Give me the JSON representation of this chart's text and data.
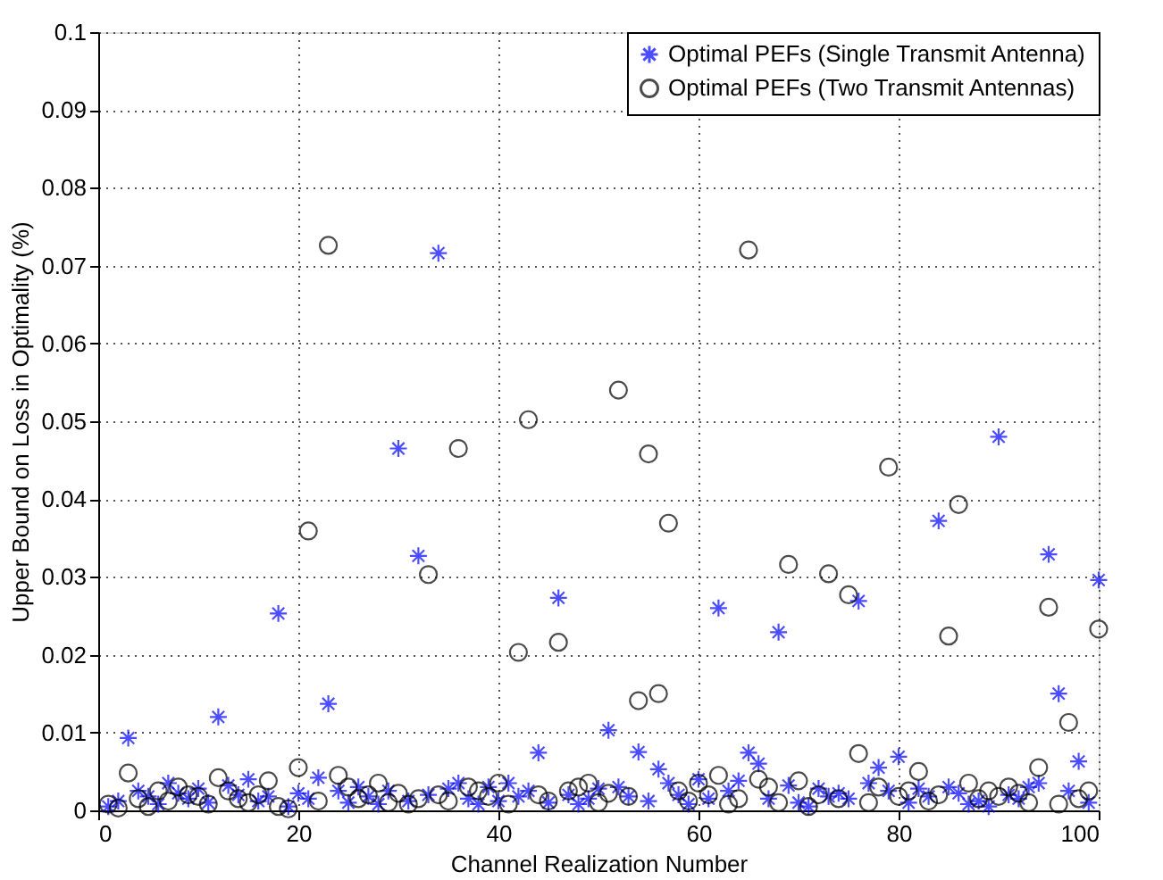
{
  "chart_data": {
    "type": "scatter",
    "xlabel": "Channel Realization Number",
    "ylabel": "Upper Bound on Loss in Optimality (%)",
    "xlim": [
      0,
      100
    ],
    "xticks": [
      0,
      20,
      40,
      60,
      80,
      100
    ],
    "ylim": [
      0,
      0.1
    ],
    "yticks": [
      0,
      0.01,
      0.02,
      0.03,
      0.04,
      0.05,
      0.06,
      0.07,
      0.08,
      0.09,
      0.1
    ],
    "grid": true,
    "legend": "top right",
    "x": [
      1,
      2,
      3,
      4,
      5,
      6,
      7,
      8,
      9,
      10,
      11,
      12,
      13,
      14,
      15,
      16,
      17,
      18,
      19,
      20,
      21,
      22,
      23,
      24,
      25,
      26,
      27,
      28,
      29,
      30,
      31,
      32,
      33,
      34,
      35,
      36,
      37,
      38,
      39,
      40,
      41,
      42,
      43,
      44,
      45,
      46,
      47,
      48,
      49,
      50,
      51,
      52,
      53,
      54,
      55,
      56,
      57,
      58,
      59,
      60,
      61,
      62,
      63,
      64,
      65,
      66,
      67,
      68,
      69,
      70,
      71,
      72,
      73,
      74,
      75,
      76,
      77,
      78,
      79,
      80,
      81,
      82,
      83,
      84,
      85,
      86,
      87,
      88,
      89,
      90,
      91,
      92,
      93,
      94,
      95,
      96,
      97,
      98,
      99,
      100
    ],
    "series": [
      {
        "name": "Optimal PEFs (Single Transmit Antenna)",
        "color": "#0000ff",
        "marker": "cross",
        "values": [
          0.0005,
          0.0012,
          0.0093,
          0.0025,
          0.0018,
          0.0008,
          0.0035,
          0.0022,
          0.0015,
          0.0028,
          0.001,
          0.012,
          0.0032,
          0.002,
          0.004,
          0.0012,
          0.0018,
          0.0253,
          0.0005,
          0.0022,
          0.0015,
          0.0042,
          0.0137,
          0.0025,
          0.001,
          0.003,
          0.0018,
          0.0008,
          0.0025,
          0.0465,
          0.0012,
          0.0327,
          0.002,
          0.0716,
          0.0028,
          0.0035,
          0.0015,
          0.0008,
          0.003,
          0.0012,
          0.0035,
          0.0018,
          0.0025,
          0.0074,
          0.001,
          0.0273,
          0.002,
          0.0008,
          0.0015,
          0.0028,
          0.0103,
          0.003,
          0.0018,
          0.0075,
          0.0012,
          0.0053,
          0.0035,
          0.002,
          0.0008,
          0.004,
          0.0015,
          0.026,
          0.0025,
          0.0038,
          0.0074,
          0.006,
          0.0015,
          0.0229,
          0.0032,
          0.001,
          0.0005,
          0.0028,
          0.0018,
          0.0022,
          0.0015,
          0.0269,
          0.0035,
          0.0055,
          0.0025,
          0.0069,
          0.001,
          0.0028,
          0.0018,
          0.0372,
          0.003,
          0.0022,
          0.0008,
          0.0012,
          0.0005,
          0.048,
          0.002,
          0.0015,
          0.003,
          0.0035,
          0.0329,
          0.015,
          0.0025,
          0.0063,
          0.001,
          0.0296
        ]
      },
      {
        "name": "Optimal PEFs (Two Transmit Antennas)",
        "color": "#000000",
        "marker": "circle",
        "values": [
          0.0008,
          0.0003,
          0.0048,
          0.0015,
          0.0005,
          0.0025,
          0.0012,
          0.003,
          0.002,
          0.0018,
          0.0008,
          0.0042,
          0.0025,
          0.0015,
          0.001,
          0.002,
          0.0038,
          0.0005,
          0.0002,
          0.0055,
          0.0359,
          0.0012,
          0.0726,
          0.0045,
          0.003,
          0.0015,
          0.002,
          0.0035,
          0.001,
          0.0022,
          0.0008,
          0.0015,
          0.0303,
          0.002,
          0.0012,
          0.0465,
          0.003,
          0.0025,
          0.0018,
          0.0035,
          0.0008,
          0.0203,
          0.0502,
          0.002,
          0.0012,
          0.0216,
          0.0025,
          0.003,
          0.0035,
          0.001,
          0.0022,
          0.054,
          0.0018,
          0.0141,
          0.0458,
          0.015,
          0.0369,
          0.0025,
          0.0012,
          0.0035,
          0.002,
          0.0045,
          0.0008,
          0.0015,
          0.072,
          0.004,
          0.003,
          0.001,
          0.0316,
          0.0038,
          0.0005,
          0.002,
          0.0304,
          0.0015,
          0.0277,
          0.0073,
          0.001,
          0.003,
          0.0441,
          0.0018,
          0.0025,
          0.005,
          0.0012,
          0.002,
          0.0224,
          0.0393,
          0.0035,
          0.0015,
          0.0025,
          0.0018,
          0.003,
          0.0022,
          0.001,
          0.0055,
          0.0261,
          0.0008,
          0.0113,
          0.0015,
          0.0025,
          0.0233
        ]
      }
    ]
  }
}
